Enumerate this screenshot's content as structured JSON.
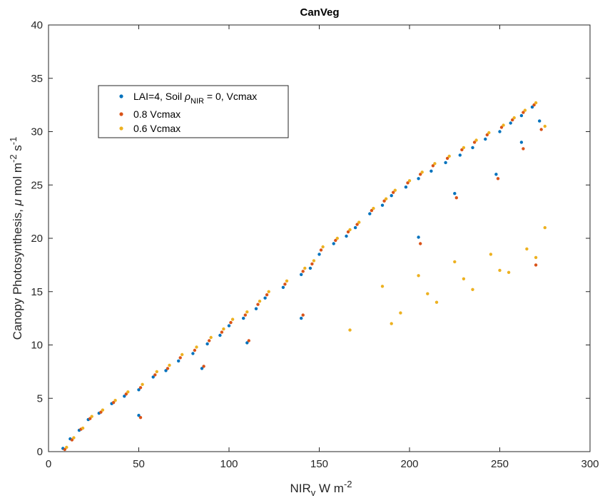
{
  "chart_data": {
    "type": "scatter",
    "title": "CanVeg",
    "xlabel": {
      "main": "NIR",
      "sub": "v",
      "unit": " W m",
      "sup": "-2"
    },
    "ylabel": {
      "main": "Canopy Photosynthesis, ",
      "mu": "μ",
      "unit": " mol m",
      "sup1": "-2",
      "s": " s",
      "sup2": "-1"
    },
    "xlim": [
      0,
      300
    ],
    "ylim": [
      0,
      40
    ],
    "xticks": [
      0,
      50,
      100,
      150,
      200,
      250,
      300
    ],
    "yticks": [
      0,
      5,
      10,
      15,
      20,
      25,
      30,
      35,
      40
    ],
    "grid": false,
    "legend_position": "upper-left",
    "series": [
      {
        "name": "LAI=4, Soil ρNIR = 0, Vcmax",
        "legend": {
          "pre": "LAI=4, Soil ",
          "rho": "ρ",
          "sub": "NIR",
          "post": " = 0, Vcmax"
        },
        "color": "#0072BD",
        "x": [
          8,
          12,
          17,
          22,
          28,
          35,
          42,
          50,
          58,
          65,
          72,
          80,
          88,
          95,
          100,
          108,
          115,
          120,
          130,
          140,
          145,
          150,
          158,
          165,
          170,
          178,
          185,
          190,
          198,
          205,
          212,
          220,
          228,
          235,
          242,
          250,
          256,
          262,
          268,
          272,
          50,
          85,
          110,
          140,
          205,
          225,
          248,
          262
        ],
        "y": [
          0.3,
          1.2,
          2.0,
          3.0,
          3.6,
          4.5,
          5.2,
          5.8,
          7.0,
          7.6,
          8.5,
          9.2,
          10.1,
          10.9,
          11.8,
          12.5,
          13.4,
          14.4,
          15.4,
          16.6,
          17.2,
          18.5,
          19.5,
          20.2,
          21.0,
          22.3,
          23.1,
          24.0,
          24.8,
          25.6,
          26.3,
          27.1,
          27.8,
          28.5,
          29.3,
          30.0,
          30.8,
          31.5,
          32.3,
          31.0,
          3.4,
          7.8,
          10.2,
          12.5,
          20.1,
          24.2,
          26.0,
          29.0
        ]
      },
      {
        "name": "0.8 Vcmax",
        "color": "#D95319",
        "x": [
          9,
          13,
          18,
          23,
          29,
          36,
          43,
          51,
          59,
          66,
          73,
          81,
          89,
          96,
          101,
          109,
          116,
          121,
          131,
          141,
          146,
          151,
          159,
          166,
          171,
          179,
          186,
          191,
          199,
          206,
          213,
          221,
          229,
          236,
          243,
          251,
          257,
          263,
          269,
          273,
          51,
          86,
          111,
          141,
          206,
          226,
          249,
          263,
          270
        ],
        "y": [
          0.2,
          1.1,
          2.1,
          3.1,
          3.7,
          4.6,
          5.4,
          6.0,
          7.2,
          7.8,
          8.8,
          9.5,
          10.4,
          11.2,
          12.1,
          12.8,
          13.8,
          14.7,
          15.7,
          16.9,
          17.6,
          18.9,
          19.8,
          20.6,
          21.3,
          22.6,
          23.5,
          24.3,
          25.2,
          26.0,
          26.8,
          27.5,
          28.3,
          29.0,
          29.7,
          30.4,
          31.1,
          31.8,
          32.5,
          30.2,
          3.2,
          8.0,
          10.4,
          12.8,
          19.5,
          23.8,
          25.6,
          28.4,
          17.5
        ]
      },
      {
        "name": "0.6 Vcmax",
        "color": "#EDB120",
        "x": [
          10,
          14,
          19,
          24,
          30,
          37,
          44,
          52,
          60,
          67,
          74,
          82,
          90,
          97,
          102,
          110,
          117,
          122,
          132,
          142,
          147,
          152,
          160,
          167,
          172,
          180,
          187,
          192,
          200,
          207,
          214,
          222,
          230,
          237,
          244,
          252,
          258,
          264,
          270,
          275,
          167,
          185,
          195,
          205,
          215,
          225,
          235,
          245,
          255,
          265,
          275,
          190,
          210,
          230,
          250,
          270
        ],
        "y": [
          0.4,
          1.3,
          2.2,
          3.3,
          3.9,
          4.8,
          5.6,
          6.3,
          7.5,
          8.1,
          9.1,
          9.8,
          10.7,
          11.5,
          12.4,
          13.1,
          14.1,
          15.0,
          16.0,
          17.2,
          17.9,
          19.2,
          20.0,
          20.8,
          21.5,
          22.8,
          23.7,
          24.5,
          25.4,
          26.2,
          27.0,
          27.7,
          28.5,
          29.2,
          29.9,
          30.6,
          31.3,
          32.0,
          32.7,
          30.5,
          11.4,
          15.5,
          13.0,
          16.5,
          14.0,
          17.8,
          15.2,
          18.5,
          16.8,
          19.0,
          21.0,
          12.0,
          14.8,
          16.2,
          17.0,
          18.2
        ]
      }
    ]
  }
}
